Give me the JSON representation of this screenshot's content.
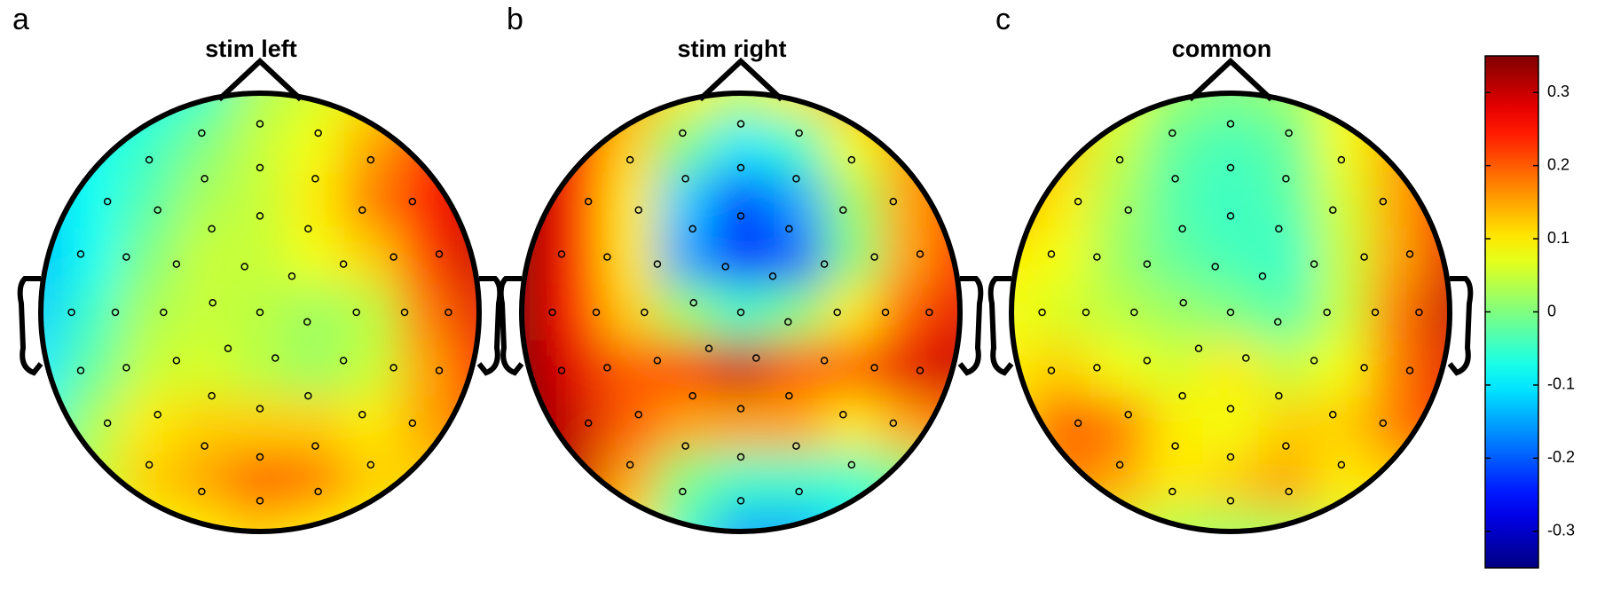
{
  "chart_data": {
    "type": "topomap",
    "colormap": "jet",
    "panels": [
      {
        "label": "a",
        "title": "stim left",
        "values": [
          [
            -0.08,
            -0.08,
            -0.08,
            -0.05,
            0.03,
            0.06,
            0.1,
            0.15,
            0.2
          ],
          [
            -0.1,
            -0.08,
            -0.05,
            0.0,
            0.05,
            0.08,
            0.15,
            0.22,
            0.28
          ],
          [
            -0.12,
            -0.08,
            -0.03,
            0.03,
            0.05,
            0.1,
            0.18,
            0.25,
            0.3
          ],
          [
            -0.13,
            -0.08,
            0.0,
            0.05,
            0.05,
            0.08,
            0.12,
            0.22,
            0.3
          ],
          [
            -0.12,
            -0.05,
            0.03,
            0.05,
            0.04,
            0.02,
            0.04,
            0.18,
            0.28
          ],
          [
            -0.1,
            -0.02,
            0.05,
            0.06,
            0.04,
            0.02,
            0.05,
            0.15,
            0.25
          ],
          [
            -0.06,
            0.03,
            0.1,
            0.12,
            0.12,
            0.12,
            0.1,
            0.15,
            0.2
          ],
          [
            -0.03,
            0.05,
            0.12,
            0.15,
            0.2,
            0.18,
            0.12,
            0.12,
            0.15
          ],
          [
            0.0,
            0.05,
            0.08,
            0.1,
            0.12,
            0.1,
            0.08,
            0.08,
            0.1
          ]
        ]
      },
      {
        "label": "b",
        "title": "stim right",
        "values": [
          [
            0.3,
            0.25,
            0.15,
            0.1,
            0.05,
            0.1,
            0.15,
            0.2,
            0.2
          ],
          [
            0.33,
            0.25,
            0.12,
            0.0,
            -0.1,
            -0.05,
            0.08,
            0.15,
            0.2
          ],
          [
            0.35,
            0.25,
            0.1,
            -0.12,
            -0.22,
            -0.15,
            0.02,
            0.15,
            0.22
          ],
          [
            0.35,
            0.25,
            0.1,
            -0.15,
            -0.25,
            -0.2,
            0.0,
            0.15,
            0.25
          ],
          [
            0.35,
            0.25,
            0.12,
            0.02,
            -0.05,
            0.0,
            0.1,
            0.2,
            0.28
          ],
          [
            0.35,
            0.28,
            0.2,
            0.22,
            0.3,
            0.2,
            0.2,
            0.28,
            0.3
          ],
          [
            0.35,
            0.3,
            0.2,
            0.15,
            0.15,
            0.15,
            0.1,
            0.15,
            0.2
          ],
          [
            0.35,
            0.3,
            0.15,
            0.0,
            -0.05,
            -0.05,
            -0.05,
            0.0,
            0.05
          ],
          [
            0.35,
            0.25,
            0.1,
            -0.05,
            -0.15,
            -0.15,
            -0.1,
            -0.05,
            0.0
          ]
        ]
      },
      {
        "label": "c",
        "title": "common",
        "values": [
          [
            0.15,
            0.12,
            0.08,
            0.02,
            0.0,
            0.02,
            0.08,
            0.12,
            0.18
          ],
          [
            0.18,
            0.12,
            0.05,
            -0.02,
            -0.04,
            -0.02,
            0.08,
            0.15,
            0.22
          ],
          [
            0.15,
            0.1,
            0.03,
            -0.03,
            -0.05,
            -0.03,
            0.06,
            0.15,
            0.25
          ],
          [
            0.1,
            0.08,
            0.02,
            -0.02,
            -0.04,
            -0.05,
            0.05,
            0.15,
            0.28
          ],
          [
            0.08,
            0.06,
            0.04,
            0.02,
            0.0,
            -0.03,
            0.05,
            0.18,
            0.3
          ],
          [
            0.1,
            0.12,
            0.08,
            0.06,
            0.1,
            0.05,
            0.08,
            0.18,
            0.28
          ],
          [
            0.12,
            0.2,
            0.18,
            0.1,
            0.08,
            0.12,
            0.12,
            0.18,
            0.25
          ],
          [
            0.1,
            0.18,
            0.15,
            0.1,
            0.12,
            0.15,
            0.1,
            0.12,
            0.2
          ],
          [
            0.05,
            0.08,
            0.06,
            0.03,
            0.02,
            0.03,
            0.05,
            0.08,
            0.1
          ]
        ]
      }
    ],
    "colorbar": {
      "ylim": [
        -0.35,
        0.35
      ],
      "yticks": [
        -0.3,
        -0.2,
        -0.1,
        0,
        0.1,
        0.2,
        0.3
      ]
    }
  }
}
